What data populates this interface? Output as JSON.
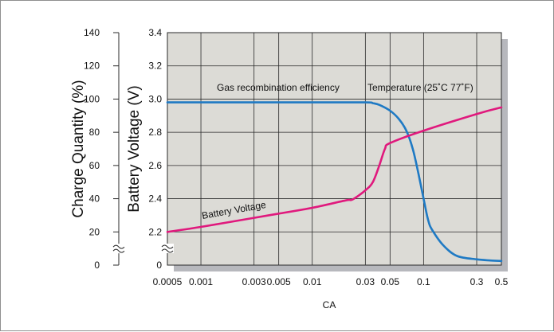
{
  "chart_data": {
    "type": "line",
    "xlabel": "CA",
    "x_scale": "log",
    "x_ticks": [
      "0.0005",
      "0.001",
      "0.003",
      "0.005",
      "0.01",
      "0.03",
      "0.05",
      "0.1",
      "0.3",
      "0.5"
    ],
    "xlim": [
      0.0005,
      0.5
    ],
    "left_axis": {
      "label": "Charge Quantity (%)",
      "ticks": [
        "0",
        "20",
        "40",
        "60",
        "80",
        "100",
        "120",
        "140"
      ],
      "ylim": [
        0,
        140
      ],
      "axis_break": true
    },
    "right_axis": {
      "label": "Battery Voltage (V)",
      "ticks": [
        "0",
        "2.2",
        "2.4",
        "2.6",
        "2.8",
        "3.0",
        "3.2",
        "3.4"
      ],
      "ylim": [
        2.0,
        3.4
      ],
      "axis_break": true
    },
    "grid": true,
    "plot_background": "#dcdbd6",
    "series": [
      {
        "name": "Gas recombination efficiency",
        "axis": "left",
        "color": "#1f7ac4",
        "points": [
          [
            0.0005,
            98
          ],
          [
            0.001,
            98
          ],
          [
            0.003,
            98
          ],
          [
            0.005,
            98
          ],
          [
            0.01,
            98
          ],
          [
            0.03,
            98
          ],
          [
            0.035,
            97.5
          ],
          [
            0.04,
            96.5
          ],
          [
            0.05,
            93
          ],
          [
            0.06,
            88
          ],
          [
            0.07,
            81
          ],
          [
            0.08,
            70
          ],
          [
            0.09,
            55
          ],
          [
            0.1,
            40
          ],
          [
            0.11,
            27
          ],
          [
            0.12,
            21
          ],
          [
            0.15,
            12
          ],
          [
            0.2,
            5.5
          ],
          [
            0.3,
            3.5
          ],
          [
            0.4,
            2.8
          ],
          [
            0.5,
            2.5
          ]
        ]
      },
      {
        "name": "Battery Voltage",
        "axis": "right",
        "color": "#e0197d",
        "points": [
          [
            0.0005,
            2.2
          ],
          [
            0.001,
            2.23
          ],
          [
            0.003,
            2.285
          ],
          [
            0.005,
            2.31
          ],
          [
            0.01,
            2.345
          ],
          [
            0.02,
            2.39
          ],
          [
            0.023,
            2.395
          ],
          [
            0.03,
            2.45
          ],
          [
            0.035,
            2.5
          ],
          [
            0.04,
            2.6
          ],
          [
            0.045,
            2.7
          ],
          [
            0.05,
            2.735
          ],
          [
            0.1,
            2.81
          ],
          [
            0.3,
            2.91
          ],
          [
            0.5,
            2.95
          ]
        ]
      }
    ],
    "annotations": {
      "gas": "Gas recombination efficiency",
      "temperature": "Temperature (25˚C 77˚F)",
      "voltage": "Battery Voltage"
    }
  }
}
